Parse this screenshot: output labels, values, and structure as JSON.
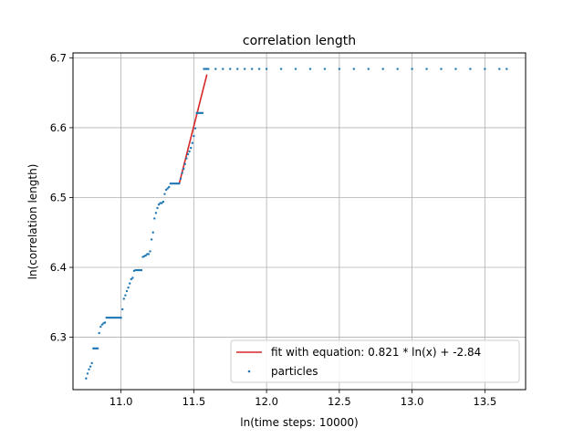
{
  "chart_data": {
    "type": "scatter",
    "title": "correlation length",
    "xlabel": "ln(time steps: 10000)",
    "ylabel": "ln(correlation length)",
    "xlim": [
      10.67,
      13.78
    ],
    "ylim": [
      6.225,
      6.707
    ],
    "xticks": [
      11.0,
      11.5,
      12.0,
      12.5,
      13.0,
      13.5
    ],
    "xtick_labels": [
      "11.0",
      "11.5",
      "12.0",
      "12.5",
      "13.0",
      "13.5"
    ],
    "yticks": [
      6.3,
      6.4,
      6.5,
      6.6,
      6.7
    ],
    "ytick_labels": [
      "6.3",
      "6.4",
      "6.5",
      "6.6",
      "6.7"
    ],
    "grid": true,
    "legend_position": "lower-right",
    "colors": {
      "points": "#1f77b4",
      "fit": "#d62728"
    },
    "fit": {
      "label": "fit with equation: 0.821 * ln(x) + -2.84",
      "slope": 0.821,
      "intercept": -2.84,
      "x": [
        11.4,
        11.59
      ],
      "y": [
        6.52,
        6.676
      ]
    },
    "particles": {
      "label": "particles",
      "x": [
        10.76,
        10.77,
        10.78,
        10.79,
        10.8,
        10.81,
        10.82,
        10.83,
        10.84,
        10.85,
        10.86,
        10.87,
        10.88,
        10.89,
        10.9,
        10.91,
        10.92,
        10.93,
        10.94,
        10.95,
        10.96,
        10.97,
        10.98,
        10.99,
        11.0,
        11.01,
        11.02,
        11.03,
        11.04,
        11.05,
        11.06,
        11.07,
        11.08,
        11.09,
        11.1,
        11.11,
        11.12,
        11.13,
        11.14,
        11.15,
        11.16,
        11.17,
        11.18,
        11.19,
        11.2,
        11.21,
        11.22,
        11.23,
        11.24,
        11.25,
        11.26,
        11.27,
        11.28,
        11.29,
        11.3,
        11.31,
        11.32,
        11.33,
        11.34,
        11.35,
        11.36,
        11.37,
        11.38,
        11.39,
        11.4,
        11.41,
        11.42,
        11.43,
        11.44,
        11.45,
        11.46,
        11.47,
        11.48,
        11.49,
        11.5,
        11.51,
        11.52,
        11.53,
        11.54,
        11.55,
        11.56,
        11.57,
        11.58,
        11.59,
        11.6,
        11.65,
        11.7,
        11.75,
        11.8,
        11.85,
        11.9,
        11.95,
        12.0,
        12.1,
        12.2,
        12.3,
        12.4,
        12.5,
        12.6,
        12.7,
        12.8,
        12.9,
        13.0,
        13.1,
        13.2,
        13.3,
        13.4,
        13.5,
        13.6,
        13.65
      ],
      "y": [
        6.241,
        6.248,
        6.254,
        6.258,
        6.263,
        6.284,
        6.284,
        6.284,
        6.284,
        6.306,
        6.315,
        6.318,
        6.32,
        6.321,
        6.328,
        6.328,
        6.328,
        6.328,
        6.328,
        6.328,
        6.328,
        6.328,
        6.328,
        6.328,
        6.328,
        6.34,
        6.355,
        6.36,
        6.366,
        6.371,
        6.377,
        6.383,
        6.385,
        6.395,
        6.396,
        6.396,
        6.396,
        6.396,
        6.396,
        6.415,
        6.416,
        6.417,
        6.419,
        6.419,
        6.423,
        6.44,
        6.45,
        6.47,
        6.478,
        6.485,
        6.49,
        6.492,
        6.492,
        6.494,
        6.505,
        6.511,
        6.513,
        6.515,
        6.52,
        6.52,
        6.52,
        6.52,
        6.52,
        6.52,
        6.52,
        6.527,
        6.535,
        6.541,
        6.548,
        6.556,
        6.562,
        6.566,
        6.571,
        6.578,
        6.588,
        6.599,
        6.621,
        6.621,
        6.621,
        6.621,
        6.621,
        6.684,
        6.684,
        6.684,
        6.684,
        6.684,
        6.684,
        6.684,
        6.684,
        6.684,
        6.684,
        6.684,
        6.684,
        6.684,
        6.684,
        6.684,
        6.684,
        6.684,
        6.684,
        6.684,
        6.684,
        6.684,
        6.684,
        6.684,
        6.684,
        6.684,
        6.684,
        6.684,
        6.684,
        6.684
      ]
    }
  }
}
